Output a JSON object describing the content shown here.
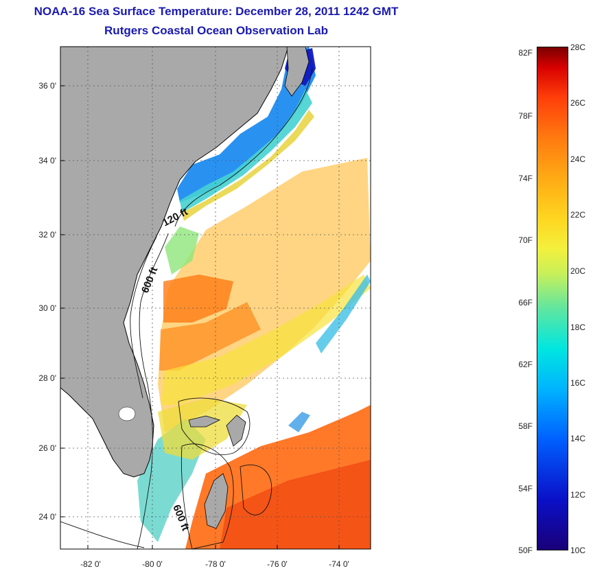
{
  "header": {
    "title": "NOAA-16 Sea Surface Temperature:  December 28, 2011 1242 GMT",
    "subtitle": "Rutgers Coastal Ocean Observation Lab"
  },
  "map": {
    "lat_ticks": [
      "24 0'",
      "26 0'",
      "28 0'",
      "30 0'",
      "32 0'",
      "34 0'",
      "36 0'"
    ],
    "lon_ticks": [
      "-82 0'",
      "-80 0'",
      "-78 0'",
      "-76 0'",
      "-74 0'"
    ],
    "contour_labels": [
      "120 ft",
      "600 ft",
      "600 ft"
    ],
    "land_color": "#a9a9a9",
    "no_data_color": "#ffffff"
  },
  "colorbar": {
    "fahrenheit": [
      "82F",
      "78F",
      "74F",
      "70F",
      "66F",
      "62F",
      "58F",
      "54F",
      "50F"
    ],
    "celsius": [
      "28C",
      "26C",
      "24C",
      "22C",
      "20C",
      "18C",
      "16C",
      "14C",
      "12C",
      "10C"
    ]
  }
}
